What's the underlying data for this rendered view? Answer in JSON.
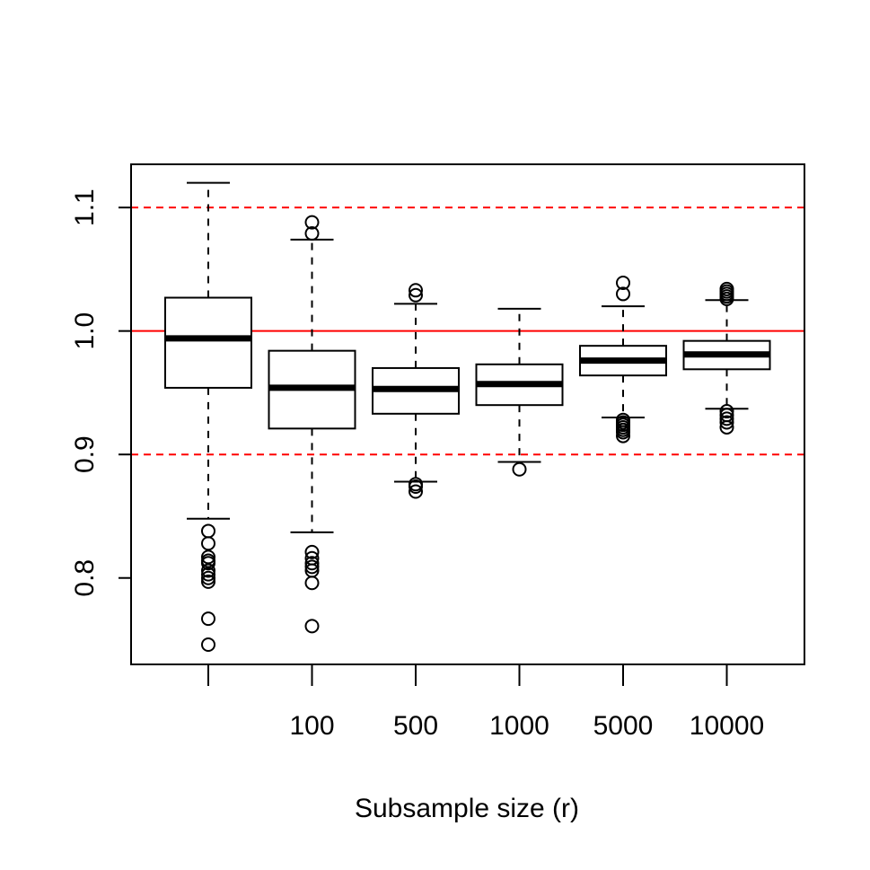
{
  "chart_data": {
    "type": "box",
    "title": "",
    "xlabel": "Subsample size (r)",
    "ylabel": "",
    "categories": [
      "",
      "100",
      "500",
      "1000",
      "5000",
      "10000"
    ],
    "ylim": [
      0.73,
      1.135
    ],
    "yticks": [
      0.8,
      0.9,
      1.0,
      1.1
    ],
    "ytick_labels": [
      "0.8",
      "0.9",
      "1.0",
      "1.1"
    ],
    "reference_lines": [
      {
        "y": 1.0,
        "style": "solid",
        "color": "#ff0000"
      },
      {
        "y": 1.1,
        "style": "dashed",
        "color": "#ff0000"
      },
      {
        "y": 0.9,
        "style": "dashed",
        "color": "#ff0000"
      }
    ],
    "boxes": [
      {
        "q1": 0.954,
        "median": 0.994,
        "q3": 1.027,
        "whisker_low": 0.848,
        "whisker_high": 1.12,
        "outliers": [
          0.838,
          0.828,
          0.817,
          0.814,
          0.812,
          0.806,
          0.803,
          0.8,
          0.797,
          0.767,
          0.746
        ]
      },
      {
        "q1": 0.921,
        "median": 0.954,
        "q3": 0.984,
        "whisker_low": 0.837,
        "whisker_high": 1.074,
        "outliers": [
          1.088,
          1.079,
          0.821,
          0.816,
          0.812,
          0.809,
          0.806,
          0.796,
          0.761
        ]
      },
      {
        "q1": 0.933,
        "median": 0.953,
        "q3": 0.97,
        "whisker_low": 0.878,
        "whisker_high": 1.022,
        "outliers": [
          1.033,
          1.029,
          0.876,
          0.874,
          0.87
        ]
      },
      {
        "q1": 0.94,
        "median": 0.957,
        "q3": 0.973,
        "whisker_low": 0.894,
        "whisker_high": 1.018,
        "outliers": [
          0.888
        ]
      },
      {
        "q1": 0.964,
        "median": 0.976,
        "q3": 0.988,
        "whisker_low": 0.93,
        "whisker_high": 1.02,
        "outliers": [
          1.039,
          1.03,
          0.928,
          0.926,
          0.924,
          0.922,
          0.92,
          0.918,
          0.915
        ]
      },
      {
        "q1": 0.969,
        "median": 0.981,
        "q3": 0.992,
        "whisker_low": 0.937,
        "whisker_high": 1.025,
        "outliers": [
          1.034,
          1.032,
          1.03,
          1.028,
          1.026,
          0.935,
          0.932,
          0.929,
          0.926,
          0.922
        ]
      }
    ],
    "colors": {
      "box": "#000000",
      "reference": "#ff0000"
    },
    "grid": false
  }
}
